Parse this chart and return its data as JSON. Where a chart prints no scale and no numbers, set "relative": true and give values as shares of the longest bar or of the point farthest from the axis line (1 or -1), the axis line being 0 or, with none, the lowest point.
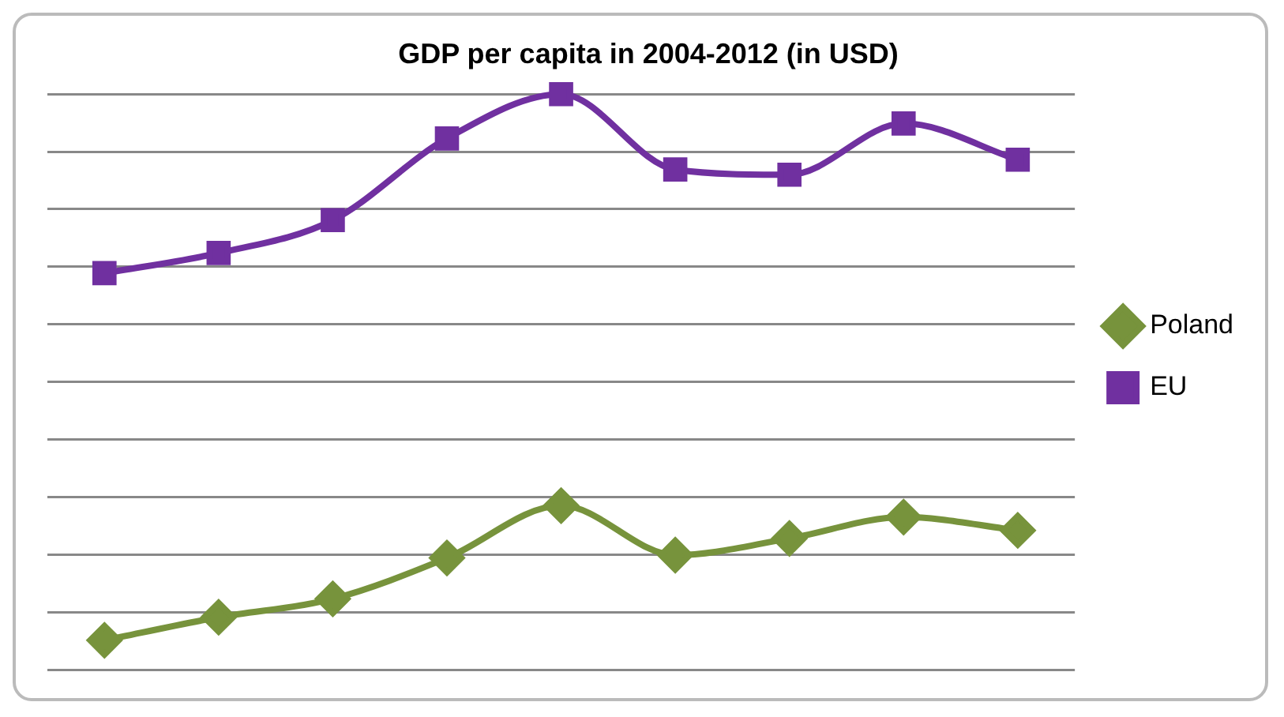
{
  "chart_data": {
    "type": "line",
    "title": "GDP per capita in 2004-2012 (in USD)",
    "relative": true,
    "categories": [
      null,
      null,
      null,
      null,
      null,
      null,
      null,
      null,
      null
    ],
    "series": [
      {
        "name": "Poland",
        "color": "#77933c",
        "marker": "diamond",
        "values": [
          0.051,
          0.091,
          0.123,
          0.194,
          0.285,
          0.199,
          0.228,
          0.265,
          0.242
        ]
      },
      {
        "name": "EU",
        "color": "#7030a0",
        "marker": "square",
        "values": [
          0.689,
          0.724,
          0.781,
          0.923,
          1,
          0.869,
          0.86,
          0.949,
          0.886
        ]
      }
    ],
    "grid": "y",
    "legend": "right"
  }
}
